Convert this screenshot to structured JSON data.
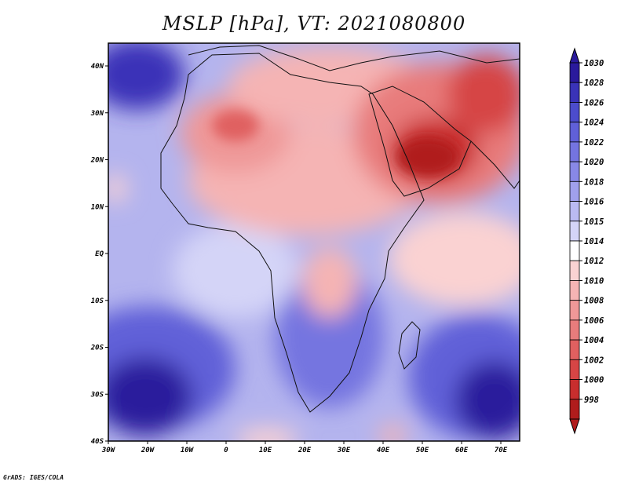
{
  "title": "MSLP [hPa], VT: 2021080800",
  "credit": "GrADS: IGES/COLA",
  "map": {
    "field": "MSLP",
    "units": "hPa",
    "lon_range": [
      -30,
      75
    ],
    "lat_range": [
      -40,
      45
    ],
    "y_ticks": [
      "40N",
      "30N",
      "20N",
      "10N",
      "EQ",
      "10S",
      "20S",
      "30S",
      "40S"
    ],
    "x_ticks": [
      "30W",
      "20W",
      "10W",
      "0",
      "10E",
      "20E",
      "30E",
      "40E",
      "50E",
      "60E",
      "70E"
    ]
  },
  "colorbar": {
    "labels": [
      "1030",
      "1028",
      "1026",
      "1024",
      "1022",
      "1020",
      "1018",
      "1016",
      "1015",
      "1014",
      "1012",
      "1010",
      "1008",
      "1006",
      "1004",
      "1002",
      "1000",
      "998"
    ],
    "colors": [
      "#2a1a9c",
      "#3a33b8",
      "#4c4ccc",
      "#6060d8",
      "#7474e0",
      "#8888e6",
      "#a0a0ec",
      "#babaf2",
      "#d4d4f7",
      "#ffffff",
      "#fad2d2",
      "#f5b4b4",
      "#ef9898",
      "#e87c7c",
      "#e06060",
      "#d64545",
      "#c82e2e",
      "#b01c1c"
    ]
  }
}
